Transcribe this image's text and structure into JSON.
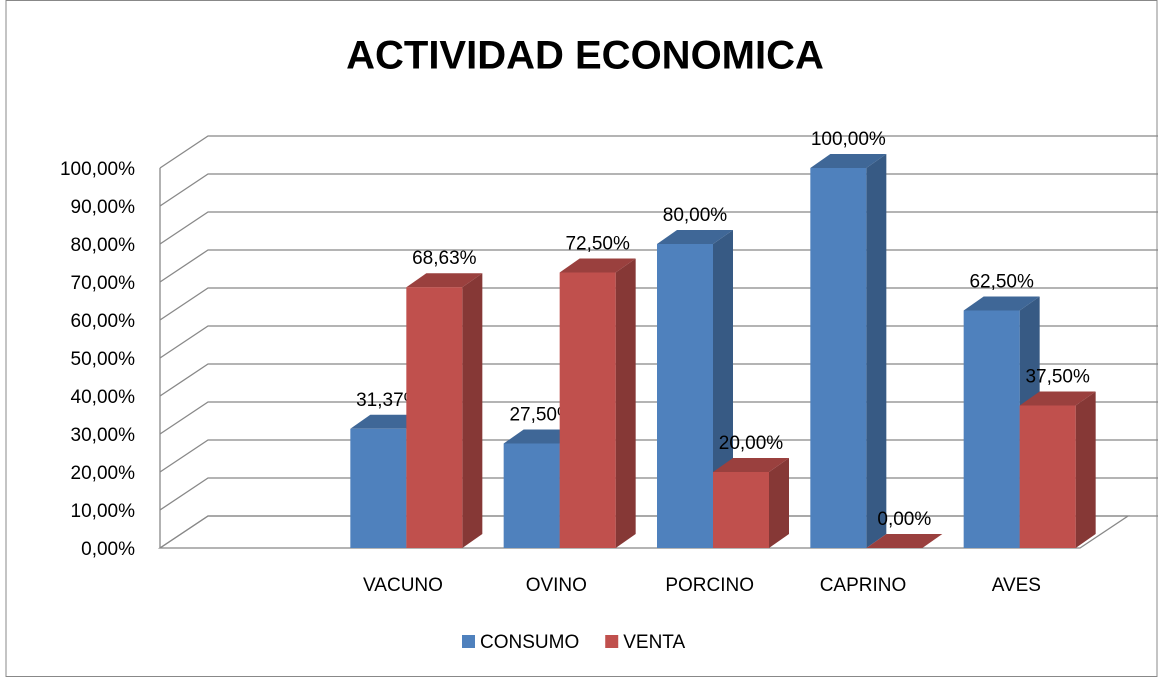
{
  "chart_data": {
    "type": "bar3d",
    "title": "ACTIVIDAD ECONOMICA",
    "categories": [
      null,
      "VACUNO",
      "OVINO",
      "PORCINO",
      "CAPRINO",
      "AVES"
    ],
    "series": [
      {
        "name": "CONSUMO",
        "color": "#4f81bd",
        "values": [
          null,
          31.37,
          27.5,
          80,
          100,
          62.5
        ],
        "value_labels": [
          null,
          "31,37%",
          "27,50%",
          "80,00%",
          "100,00%",
          "62,50%"
        ]
      },
      {
        "name": "VENTA",
        "color": "#c0504d",
        "values": [
          null,
          68.63,
          72.5,
          20,
          0,
          37.5
        ],
        "value_labels": [
          null,
          "68,63%",
          "72,50%",
          "20,00%",
          "0,00%",
          "37,50%"
        ]
      }
    ],
    "ylim": [
      0,
      100
    ],
    "yticks": [
      {
        "value": 0,
        "label": "0,00%"
      },
      {
        "value": 10,
        "label": "10,00%"
      },
      {
        "value": 20,
        "label": "20,00%"
      },
      {
        "value": 30,
        "label": "30,00%"
      },
      {
        "value": 40,
        "label": "40,00%"
      },
      {
        "value": 50,
        "label": "50,00%"
      },
      {
        "value": 60,
        "label": "60,00%"
      },
      {
        "value": 70,
        "label": "70,00%"
      },
      {
        "value": 80,
        "label": "80,00%"
      },
      {
        "value": 90,
        "label": "90,00%"
      },
      {
        "value": 100,
        "label": "100,00%"
      }
    ],
    "grid": true,
    "legend": "bottom"
  }
}
